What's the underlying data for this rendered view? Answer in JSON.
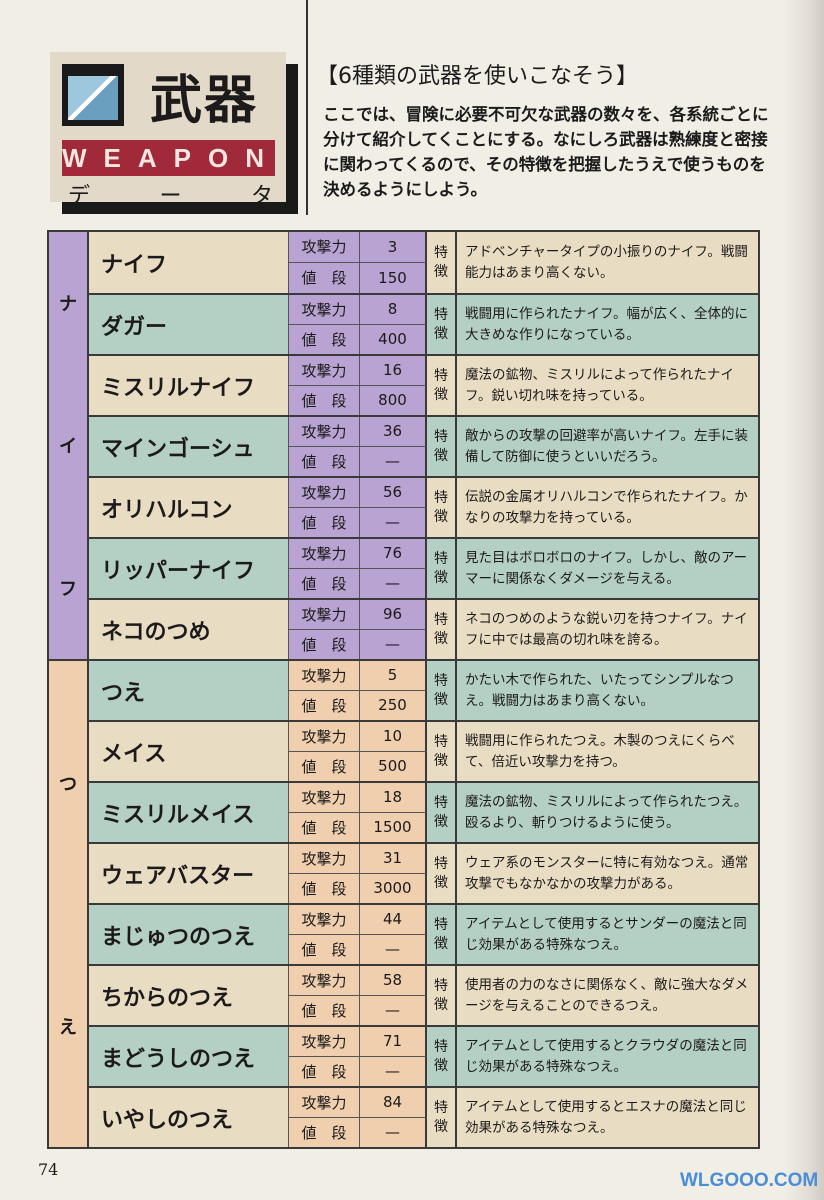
{
  "header": {
    "logo_title": "武器",
    "logo_band": "WEAPON",
    "logo_sub": [
      "デ",
      "ー",
      "タ"
    ],
    "title": "【6種類の武器を使いこなそう】",
    "intro": "ここでは、冒険に必要不可欠な武器の数々を、各系統ごとに分けて紹介してくことにする。なにしろ武器は熟練度と密接に関わってくるので、その特徴を把握したうえで使うものを決めるようにしよう。"
  },
  "colors": {
    "knife_stat": "#b8a3d2",
    "staff_stat": "#efcfae",
    "cream": "#e8ddc3",
    "teal": "#b4cfc4",
    "band": "#a02a3a"
  },
  "labels": {
    "attack": "攻撃力",
    "price": "値　段",
    "feature": [
      "特",
      "徴"
    ]
  },
  "sections": [
    {
      "category": [
        "ナ",
        "イ",
        "フ"
      ],
      "stat_color": "knife_stat",
      "weapons": [
        {
          "name": "ナイフ",
          "attack": "3",
          "price": "150",
          "desc": "アドベンチャータイプの小振りのナイフ。戦闘能力はあまり高くない。"
        },
        {
          "name": "ダガー",
          "attack": "8",
          "price": "400",
          "desc": "戦闘用に作られたナイフ。幅が広く、全体的に大きめな作りになっている。"
        },
        {
          "name": "ミスリルナイフ",
          "attack": "16",
          "price": "800",
          "desc": "魔法の鉱物、ミスリルによって作られたナイフ。鋭い切れ味を持っている。"
        },
        {
          "name": "マインゴーシュ",
          "attack": "36",
          "price": "—",
          "desc": "敵からの攻撃の回避率が高いナイフ。左手に装備して防御に使うといいだろう。"
        },
        {
          "name": "オリハルコン",
          "attack": "56",
          "price": "—",
          "desc": "伝説の金属オリハルコンで作られたナイフ。かなりの攻撃力を持っている。"
        },
        {
          "name": "リッパーナイフ",
          "attack": "76",
          "price": "—",
          "desc": "見た目はボロボロのナイフ。しかし、敵のアーマーに関係なくダメージを与える。"
        },
        {
          "name": "ネコのつめ",
          "attack": "96",
          "price": "—",
          "desc": "ネコのつめのような鋭い刃を持つナイフ。ナイフに中では最高の切れ味を誇る。"
        }
      ]
    },
    {
      "category": [
        "つ",
        "え"
      ],
      "stat_color": "staff_stat",
      "weapons": [
        {
          "name": "つえ",
          "attack": "5",
          "price": "250",
          "desc": "かたい木で作られた、いたってシンプルなつえ。戦闘力はあまり高くない。"
        },
        {
          "name": "メイス",
          "attack": "10",
          "price": "500",
          "desc": "戦闘用に作られたつえ。木製のつえにくらべて、倍近い攻撃力を持つ。"
        },
        {
          "name": "ミスリルメイス",
          "attack": "18",
          "price": "1500",
          "desc": "魔法の鉱物、ミスリルによって作られたつえ。殴るより、斬りつけるように使う。"
        },
        {
          "name": "ウェアバスター",
          "attack": "31",
          "price": "3000",
          "desc": "ウェア系のモンスターに特に有効なつえ。通常攻撃でもなかなかの攻撃力がある。"
        },
        {
          "name": "まじゅつのつえ",
          "attack": "44",
          "price": "—",
          "desc": "アイテムとして使用するとサンダーの魔法と同じ効果がある特殊なつえ。"
        },
        {
          "name": "ちからのつえ",
          "attack": "58",
          "price": "—",
          "desc": "使用者の力のなさに関係なく、敵に強大なダメージを与えることのできるつえ。"
        },
        {
          "name": "まどうしのつえ",
          "attack": "71",
          "price": "—",
          "desc": "アイテムとして使用するとクラウダの魔法と同じ効果がある特殊なつえ。"
        },
        {
          "name": "いやしのつえ",
          "attack": "84",
          "price": "—",
          "desc": "アイテムとして使用するとエスナの魔法と同じ効果がある特殊なつえ。"
        }
      ]
    }
  ],
  "footer": {
    "page_number": "74",
    "watermark": "WLGOOO.COM"
  }
}
